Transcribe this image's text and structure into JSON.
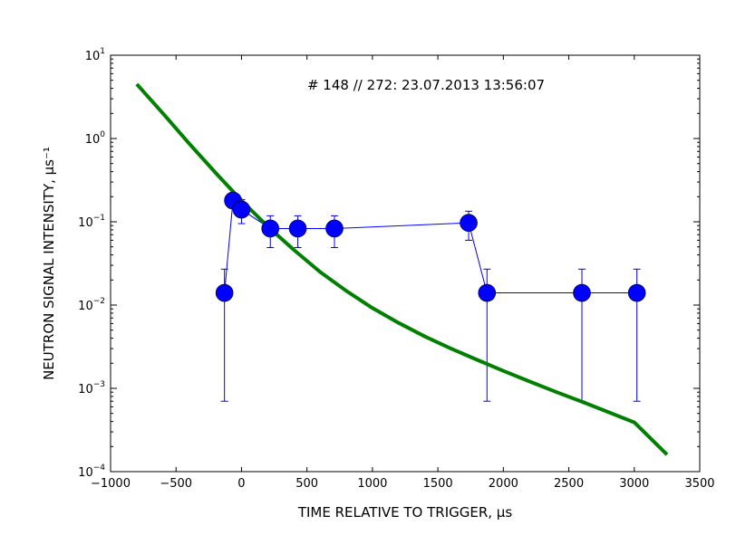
{
  "chart_data": {
    "type": "scatter",
    "title": "",
    "annotation": "# 148 // 272: 23.07.2013 13:56:07",
    "xlabel": "TIME RELATIVE TO TRIGGER, μs",
    "ylabel": "NEUTRON SIGNAL INTENSITY, μs⁻¹",
    "xlim": [
      -1000,
      3500
    ],
    "ylim": [
      0.0001,
      10
    ],
    "yscale": "log",
    "grid": false,
    "legend": "none",
    "x_ticks": [
      -1000,
      -500,
      0,
      500,
      1000,
      1500,
      2000,
      2500,
      3000,
      3500
    ],
    "x_tick_labels": [
      "−1000",
      "−500",
      "0",
      "500",
      "1000",
      "1500",
      "2000",
      "2500",
      "3000",
      "3500"
    ],
    "y_ticks": [
      {
        "value": 0.0001,
        "base": "10",
        "exp": "−4"
      },
      {
        "value": 0.001,
        "base": "10",
        "exp": "−3"
      },
      {
        "value": 0.01,
        "base": "10",
        "exp": "−2"
      },
      {
        "value": 0.1,
        "base": "10",
        "exp": "−1"
      },
      {
        "value": 1,
        "base": "10",
        "exp": "0"
      },
      {
        "value": 10,
        "base": "10",
        "exp": "1"
      }
    ],
    "series": [
      {
        "kind": "markers-with-errorbars",
        "color": "#0000ff",
        "points": [
          {
            "x": -130,
            "y": 0.014,
            "ylo": 0.0007,
            "yhi": 0.027
          },
          {
            "x": -65,
            "y": 0.18,
            "ylo": 0.18,
            "yhi": 0.18
          },
          {
            "x": 0,
            "y": 0.14,
            "ylo": 0.095,
            "yhi": 0.185
          },
          {
            "x": 220,
            "y": 0.083,
            "ylo": 0.049,
            "yhi": 0.118
          },
          {
            "x": 430,
            "y": 0.083,
            "ylo": 0.049,
            "yhi": 0.118
          },
          {
            "x": 710,
            "y": 0.083,
            "ylo": 0.049,
            "yhi": 0.118
          },
          {
            "x": 1735,
            "y": 0.097,
            "ylo": 0.06,
            "yhi": 0.134
          },
          {
            "x": 1875,
            "y": 0.014,
            "ylo": 0.0007,
            "yhi": 0.027
          },
          {
            "x": 2600,
            "y": 0.014,
            "ylo": 0.0007,
            "yhi": 0.027
          },
          {
            "x": 3020,
            "y": 0.014,
            "ylo": 0.0007,
            "yhi": 0.027
          }
        ]
      },
      {
        "kind": "curve",
        "color": "#008000",
        "x": [
          -800,
          -600,
          -400,
          -200,
          0,
          200,
          400,
          600,
          800,
          1000,
          1200,
          1400,
          1600,
          1800,
          2000,
          2200,
          2400,
          2600,
          2800,
          3000,
          3250
        ],
        "y": [
          4.5,
          2.0,
          0.87,
          0.39,
          0.18,
          0.088,
          0.046,
          0.025,
          0.0148,
          0.0092,
          0.0061,
          0.0042,
          0.003,
          0.0022,
          0.00162,
          0.00121,
          0.00091,
          0.00069,
          0.00052,
          0.00039,
          0.00016
        ]
      }
    ]
  }
}
